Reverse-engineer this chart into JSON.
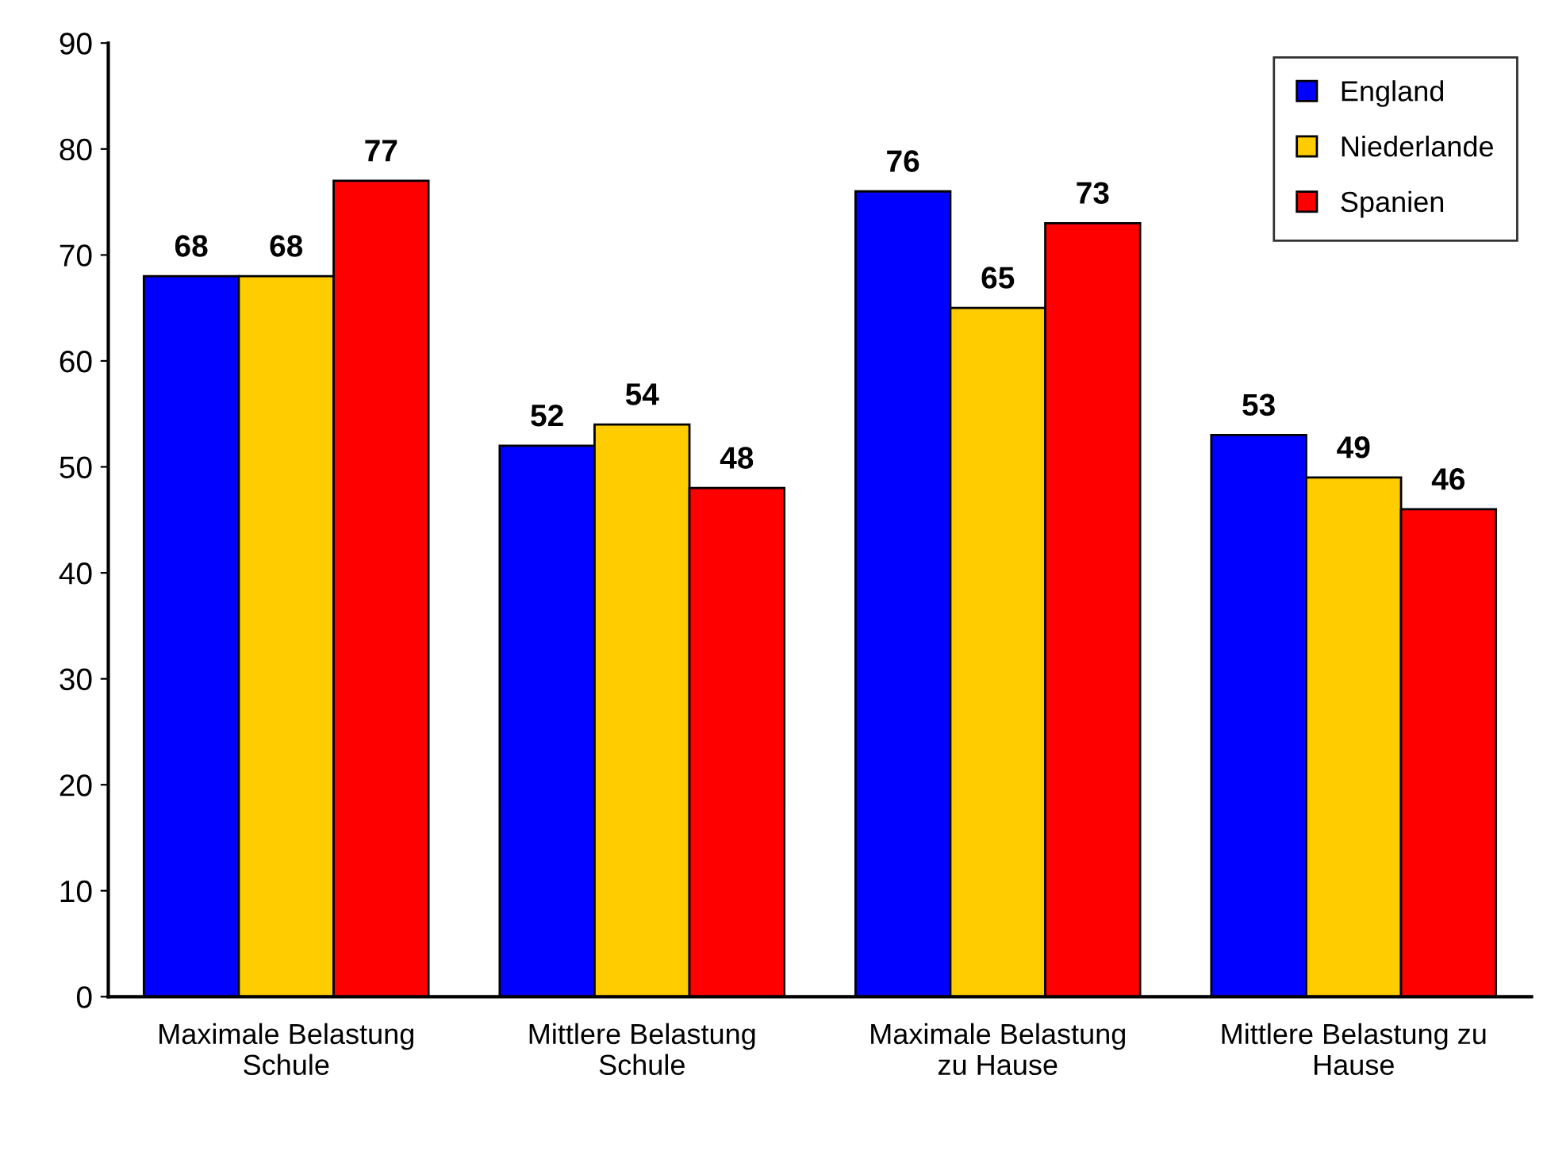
{
  "chart_data": {
    "type": "bar",
    "categories": [
      "Maximale Belastung\nSchule",
      "Mittlere Belastung\nSchule",
      "Maximale Belastung\nzu Hause",
      "Mittlere Belastung zu\nHause"
    ],
    "series": [
      {
        "name": "England",
        "color": "#0000ff",
        "values": [
          68,
          52,
          76,
          53
        ]
      },
      {
        "name": "Niederlande",
        "color": "#ffcc00",
        "values": [
          68,
          54,
          65,
          49
        ]
      },
      {
        "name": "Spanien",
        "color": "#ff0000",
        "values": [
          77,
          48,
          73,
          46
        ]
      }
    ],
    "ylim": [
      0,
      90
    ],
    "yticks": [
      0,
      10,
      20,
      30,
      40,
      50,
      60,
      70,
      80,
      90
    ],
    "data_labels": true,
    "grid": false,
    "legend": "top right"
  }
}
